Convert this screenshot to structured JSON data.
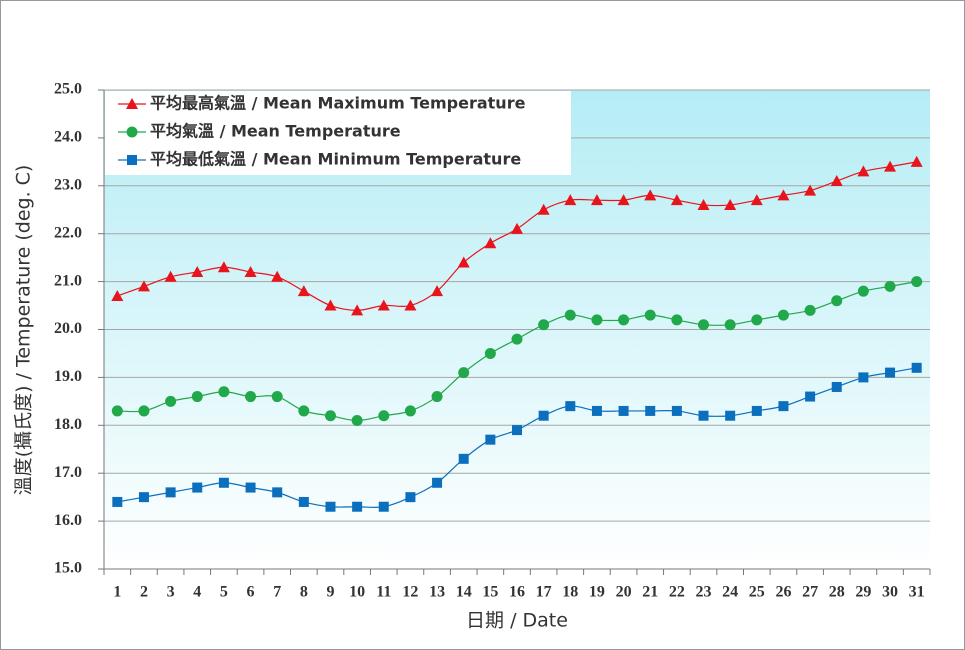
{
  "chart_data": {
    "type": "line",
    "x_label": "日期 / Date",
    "y_label": "溫度(攝氏度) / Temperature (deg. C)",
    "categories": [
      "1",
      "2",
      "3",
      "4",
      "5",
      "6",
      "7",
      "8",
      "9",
      "10",
      "11",
      "12",
      "13",
      "14",
      "15",
      "16",
      "17",
      "18",
      "19",
      "20",
      "21",
      "22",
      "23",
      "24",
      "25",
      "26",
      "27",
      "28",
      "29",
      "30",
      "31"
    ],
    "series": [
      {
        "name": "平均最高氣溫 / Mean Maximum Temperature",
        "color": "#e8141c",
        "marker": "triangle",
        "values": [
          20.7,
          20.9,
          21.1,
          21.2,
          21.3,
          21.2,
          21.1,
          20.8,
          20.5,
          20.4,
          20.5,
          20.5,
          20.8,
          21.4,
          21.8,
          22.1,
          22.5,
          22.7,
          22.7,
          22.7,
          22.8,
          22.7,
          22.6,
          22.6,
          22.7,
          22.8,
          22.9,
          23.1,
          23.3,
          23.4,
          23.5
        ]
      },
      {
        "name": "平均氣溫 / Mean Temperature",
        "color": "#20a84a",
        "marker": "circle",
        "values": [
          18.3,
          18.3,
          18.5,
          18.6,
          18.7,
          18.6,
          18.6,
          18.3,
          18.2,
          18.1,
          18.2,
          18.3,
          18.6,
          19.1,
          19.5,
          19.8,
          20.1,
          20.3,
          20.2,
          20.2,
          20.3,
          20.2,
          20.1,
          20.1,
          20.2,
          20.3,
          20.4,
          20.6,
          20.8,
          20.9,
          21.0
        ]
      },
      {
        "name": "平均最低氣溫 / Mean Minimum Temperature",
        "color": "#0b6fbd",
        "marker": "square",
        "values": [
          16.4,
          16.5,
          16.6,
          16.7,
          16.8,
          16.7,
          16.6,
          16.4,
          16.3,
          16.3,
          16.3,
          16.5,
          16.8,
          17.3,
          17.7,
          17.9,
          18.2,
          18.4,
          18.3,
          18.3,
          18.3,
          18.3,
          18.2,
          18.2,
          18.3,
          18.4,
          18.6,
          18.8,
          19.0,
          19.1,
          19.2
        ]
      }
    ],
    "ylim": [
      15,
      25
    ],
    "yticks": [
      {
        "value": 15,
        "label": "15.0"
      },
      {
        "value": 16,
        "label": "16.0"
      },
      {
        "value": 17,
        "label": "17.0"
      },
      {
        "value": 18,
        "label": "18.0"
      },
      {
        "value": 19,
        "label": "19.0"
      },
      {
        "value": 20,
        "label": "20.0"
      },
      {
        "value": 21,
        "label": "21.0"
      },
      {
        "value": 22,
        "label": "22.0"
      },
      {
        "value": 23,
        "label": "23.0"
      },
      {
        "value": 24,
        "label": "24.0"
      },
      {
        "value": 25,
        "label": "25.0"
      }
    ],
    "grid": true,
    "legend": "top-left"
  }
}
